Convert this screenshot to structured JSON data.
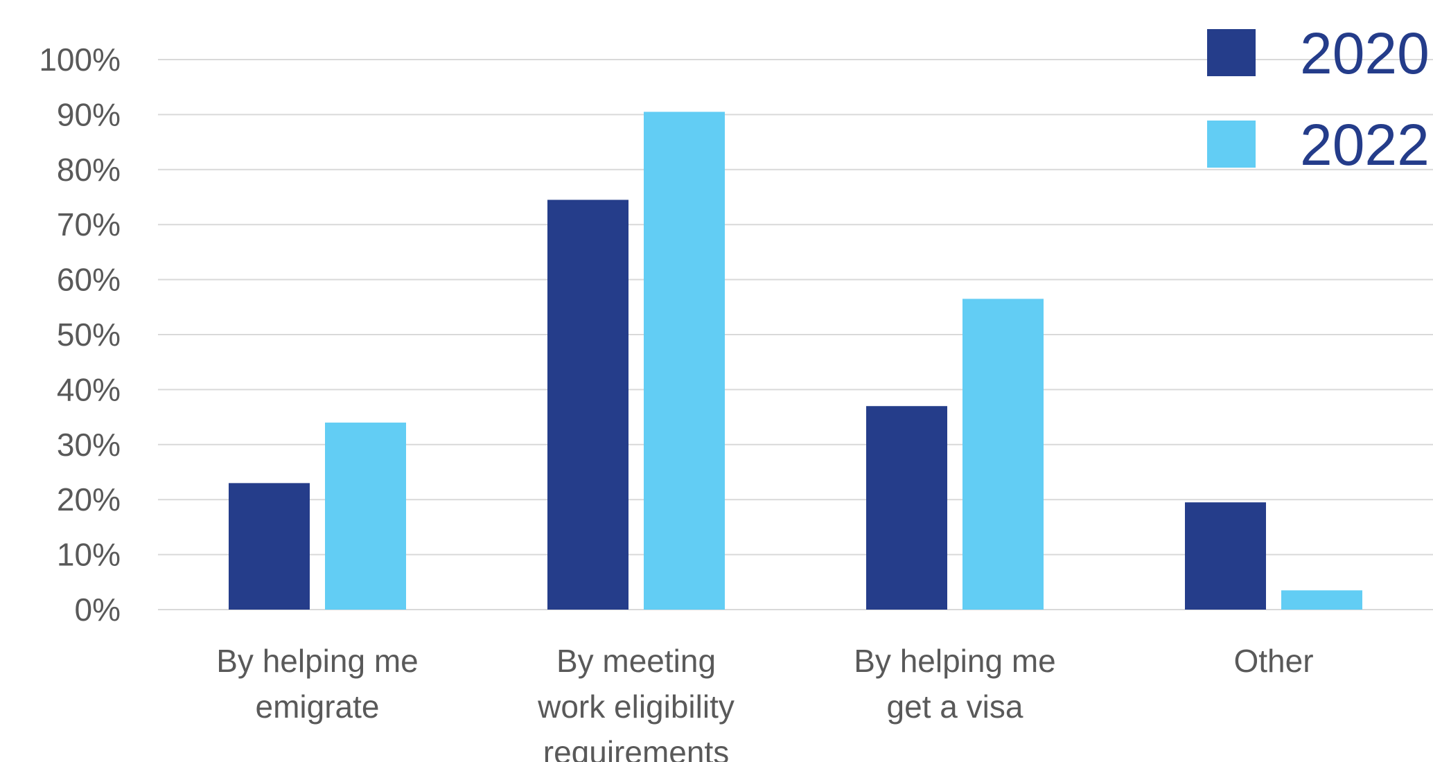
{
  "chart_data": {
    "type": "bar",
    "title": "",
    "xlabel": "",
    "ylabel": "",
    "ylim": [
      0,
      100
    ],
    "yticks": [
      0,
      10,
      20,
      30,
      40,
      50,
      60,
      70,
      80,
      90,
      100
    ],
    "ytick_labels": [
      "0%",
      "10%",
      "20%",
      "30%",
      "40%",
      "50%",
      "60%",
      "70%",
      "80%",
      "90%",
      "100%"
    ],
    "grid": true,
    "legend_position": "top-right",
    "categories": [
      [
        "By helping me",
        "emigrate"
      ],
      [
        "By meeting",
        "work eligibility",
        "requirements"
      ],
      [
        "By helping me",
        "get a visa"
      ],
      [
        "Other"
      ]
    ],
    "series": [
      {
        "name": "2020",
        "color": "#253D8A",
        "values": [
          23,
          74.5,
          37,
          19.5
        ]
      },
      {
        "name": "2022",
        "color": "#62CDF4",
        "values": [
          34,
          90.5,
          56.5,
          3.5
        ]
      }
    ]
  }
}
